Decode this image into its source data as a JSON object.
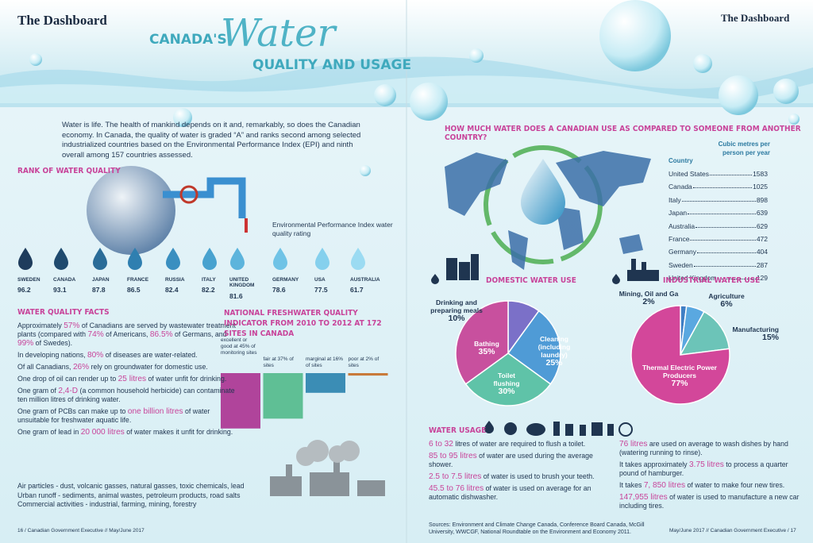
{
  "header": {
    "left_brand": "The Dashboard",
    "right_brand": "The Dashboard",
    "title_prefix": "CANADA'S",
    "title_main": "Water",
    "title_sub": "QUALITY AND USAGE"
  },
  "intro": "Water is life. The health of mankind depends on it and, remarkably, so does the Canadian economy. In Canada, the quality of water is graded “A” and ranks second among selected industrialized countries based on the Environmental Performance Index (EPI) and ninth overall among 157 countries assessed.",
  "rank": {
    "heading": "RANK OF WATER QUALITY",
    "epi_label": "Environmental Performance Index water quality rating",
    "countries": [
      {
        "name": "SWEDEN",
        "score": 96.2
      },
      {
        "name": "CANADA",
        "score": 93.1
      },
      {
        "name": "JAPAN",
        "score": 87.8
      },
      {
        "name": "FRANCE",
        "score": 86.5
      },
      {
        "name": "RUSSIA",
        "score": 82.4
      },
      {
        "name": "ITALY",
        "score": 82.2
      },
      {
        "name": "UNITED KINGDOM",
        "score": 81.6
      },
      {
        "name": "GERMANY",
        "score": 78.6
      },
      {
        "name": "USA",
        "score": 77.5
      },
      {
        "name": "AUSTRALIA",
        "score": 61.7
      }
    ]
  },
  "facts": {
    "heading": "WATER QUALITY FACTS",
    "items": [
      [
        "Approximately ",
        {
          "highlight": "57%"
        },
        " of Canadians are served by wastewater treatment plants (compared with ",
        {
          "highlight": "74%"
        },
        " of Americans, ",
        {
          "highlight": "86.5%"
        },
        " of Germans, and ",
        {
          "highlight": "99%"
        },
        " of Swedes)."
      ],
      [
        "In developing nations, ",
        {
          "highlight": "80%"
        },
        " of diseases are water-related."
      ],
      [
        "Of all Canadians, ",
        {
          "highlight": "26%"
        },
        " rely on groundwater for domestic use."
      ],
      [
        "One drop of oil can render up to ",
        {
          "highlight": "25 litres"
        },
        " of water unfit for drinking."
      ],
      [
        "One gram of ",
        {
          "highlight": "2,4-D"
        },
        " (a common household herbicide) can contaminate ten million litres of drinking water."
      ],
      [
        "One gram of PCBs can make up to ",
        {
          "highlight": "one billion litres"
        },
        " of water unsuitable for freshwater aquatic life."
      ],
      [
        "One gram of lead in ",
        {
          "highlight": "20 000 litres"
        },
        " of water makes it unfit for drinking."
      ]
    ]
  },
  "pollution": [
    "Air particles - dust, volcanic gasses, natural gasses, toxic chemicals, lead",
    "Urban runoff - sediments, animal wastes, petroleum products, road salts",
    "Commercial activities - industrial, farming, mining, forestry"
  ],
  "indicator": {
    "heading": "NATIONAL FRESHWATER QUALITY INDICATOR FROM 2010 TO 2012 AT 172 SITES IN CANADA",
    "bars": [
      {
        "label": "excellent or good at 45% of monitoring sites",
        "value": 45,
        "color": "#b0449b"
      },
      {
        "label": "fair at 37% of sites",
        "value": 37,
        "color": "#5fbf95"
      },
      {
        "label": "marginal at 16% of sites",
        "value": 16,
        "color": "#3b8db5"
      },
      {
        "label": "poor at 2% of sites",
        "value": 2,
        "color": "#c87a3a"
      }
    ]
  },
  "comparison": {
    "heading": "HOW MUCH WATER DOES A CANADIAN USE AS COMPARED TO SOMEONE FROM ANOTHER COUNTRY?",
    "col_country": "Country",
    "col_value": "Cubic metres per person per year",
    "rows": [
      {
        "country": "United States",
        "value": 1583
      },
      {
        "country": "Canada",
        "value": 1025
      },
      {
        "country": "Italy",
        "value": 898
      },
      {
        "country": "Japan",
        "value": 639
      },
      {
        "country": "Australia",
        "value": 629
      },
      {
        "country": "France",
        "value": 472
      },
      {
        "country": "Germany",
        "value": 404
      },
      {
        "country": "Sweden",
        "value": 287
      },
      {
        "country": "United Kingdom",
        "value": 129
      }
    ]
  },
  "domestic": {
    "heading": "DOMESTIC WATER USE",
    "slices": [
      {
        "name": "Drinking and preparing meals",
        "value": 10,
        "value_label": "10%",
        "color": "#7b70c8"
      },
      {
        "name": "Cleaning (including laundry)",
        "value": 25,
        "value_label": "25%",
        "color": "#4f9bd6"
      },
      {
        "name": "Toilet flushing",
        "value": 30,
        "value_label": "30%",
        "color": "#5fc3a8"
      },
      {
        "name": "Bathing",
        "value": 35,
        "value_label": "35%",
        "color": "#c8509e"
      }
    ]
  },
  "industrial": {
    "heading": "INDUSTRIAL WATER USE",
    "slices": [
      {
        "name": "Mining, Oil and Ga",
        "value": 2,
        "value_label": "2%",
        "color": "#3f7fc4"
      },
      {
        "name": "Agriculture",
        "value": 6,
        "value_label": "6%",
        "color": "#5aa8e0"
      },
      {
        "name": "Manufacturing",
        "value": 15,
        "value_label": "15%",
        "color": "#6cc4b8"
      },
      {
        "name": "Thermal Electric Power Producers",
        "value": 77,
        "value_label": "77%",
        "color": "#d3479a"
      }
    ]
  },
  "usage": {
    "heading": "WATER USAGE",
    "left": [
      [
        {
          "highlight": "6 to 32"
        },
        " litres of water are required to flush a toilet."
      ],
      [
        {
          "highlight": "85 to 95 litres"
        },
        " of water are used during the average shower."
      ],
      [
        {
          "highlight": "2.5 to 7.5 litres"
        },
        " of water is used to brush your teeth."
      ],
      [
        {
          "highlight": "45.5 to 76 litres"
        },
        " of water is used on average for an automatic dishwasher."
      ]
    ],
    "right": [
      [
        {
          "highlight": "76 litres"
        },
        " are used on average to wash dishes by hand (watering running to rinse)."
      ],
      [
        "It takes approximately ",
        {
          "highlight": "3.75 litres"
        },
        " to process a quarter pound of hamburger."
      ],
      [
        "It takes ",
        {
          "highlight": "7, 850 litres"
        },
        " of water to make four new tires."
      ],
      [
        {
          "highlight": "147,955 litres"
        },
        " of water is used to manufacture a new car including tires."
      ]
    ]
  },
  "footer": {
    "sources": "Sources: Environment and Climate Change Canada, Conference Board Canada, McGill University, WWCGF, National Roundtable on the Environment and Economy 2011.",
    "left_folio": "16 / Canadian Government Executive // May/June 2017",
    "right_folio": "May/June 2017 // Canadian Government Executive / 17"
  }
}
